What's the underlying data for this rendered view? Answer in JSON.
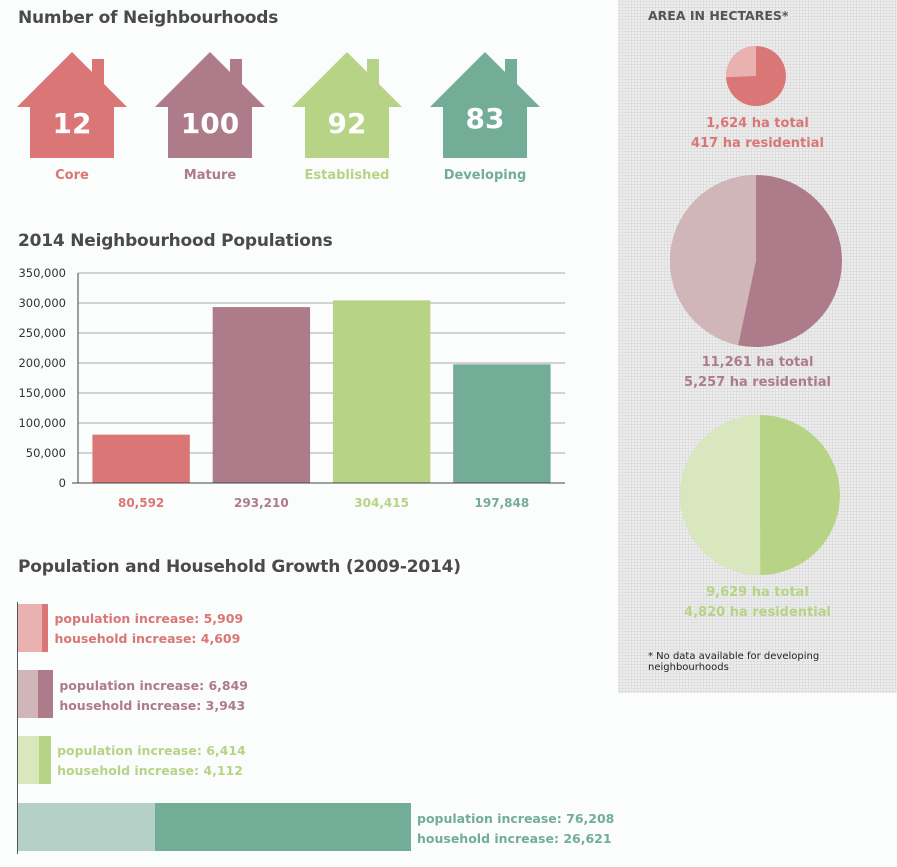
{
  "colors": {
    "core": "#db7676",
    "mature": "#ad7b89",
    "established": "#b7d385",
    "developing": "#73ad98",
    "core_light": "#e9b1af",
    "mature_light": "#d0b5b9",
    "established_light": "#d8e7bd",
    "developing_light": "#b5d0c6"
  },
  "neighbourhoods": {
    "title": "Number of Neighbourhoods",
    "items": [
      {
        "count": "12",
        "label": "Core"
      },
      {
        "count": "100",
        "label": "Mature"
      },
      {
        "count": "92",
        "label": "Established"
      },
      {
        "count": "83",
        "label": "Developing"
      }
    ]
  },
  "populations": {
    "title": "2014 Neighbourhood Populations"
  },
  "growth": {
    "title": "Population and Household Growth (2009-2014)",
    "rows": [
      {
        "population_label": "population increase: 5,909",
        "household_label": "household increase: 4,609",
        "population_increase": 5909,
        "household_increase": 4609
      },
      {
        "population_label": "population increase: 6,849",
        "household_label": "household increase: 3,943",
        "population_increase": 6849,
        "household_increase": 3943
      },
      {
        "population_label": "population increase: 6,414",
        "household_label": "household increase: 4,112",
        "population_increase": 6414,
        "household_increase": 4112
      },
      {
        "population_label": "population increase: 76,208",
        "household_label": "household increase: 26,621",
        "population_increase": 76208,
        "household_increase": 26621
      }
    ]
  },
  "area": {
    "title": "AREA IN HECTARES*",
    "items": [
      {
        "total_label": "1,624 ha total",
        "residential_label": "417 ha residential",
        "total": 1624,
        "residential": 417
      },
      {
        "total_label": "11,261 ha total",
        "residential_label": "5,257 ha residential",
        "total": 11261,
        "residential": 5257
      },
      {
        "total_label": "9,629 ha total",
        "residential_label": "4,820 ha residential",
        "total": 9629,
        "residential": 4820
      }
    ],
    "footnote": "* No data available for developing neighbourhoods"
  },
  "chart_data": {
    "type": "bar",
    "title": "2014 Neighbourhood Populations",
    "categories": [
      "",
      "",
      "",
      ""
    ],
    "values": [
      80592,
      293210,
      304415,
      197848
    ],
    "data_labels": [
      "80,592",
      "293,210",
      "304,415",
      "197,848"
    ],
    "ylim": [
      0,
      350000
    ],
    "yticks": [
      0,
      50000,
      100000,
      150000,
      200000,
      250000,
      300000,
      350000
    ],
    "ytick_labels": [
      "0",
      "50,000",
      "100,000",
      "150,000",
      "200,000",
      "250,000",
      "300,000",
      "350,000"
    ],
    "grid": true,
    "bar_colors": [
      "#db7676",
      "#ad7b89",
      "#b7d385",
      "#73ad98"
    ]
  }
}
